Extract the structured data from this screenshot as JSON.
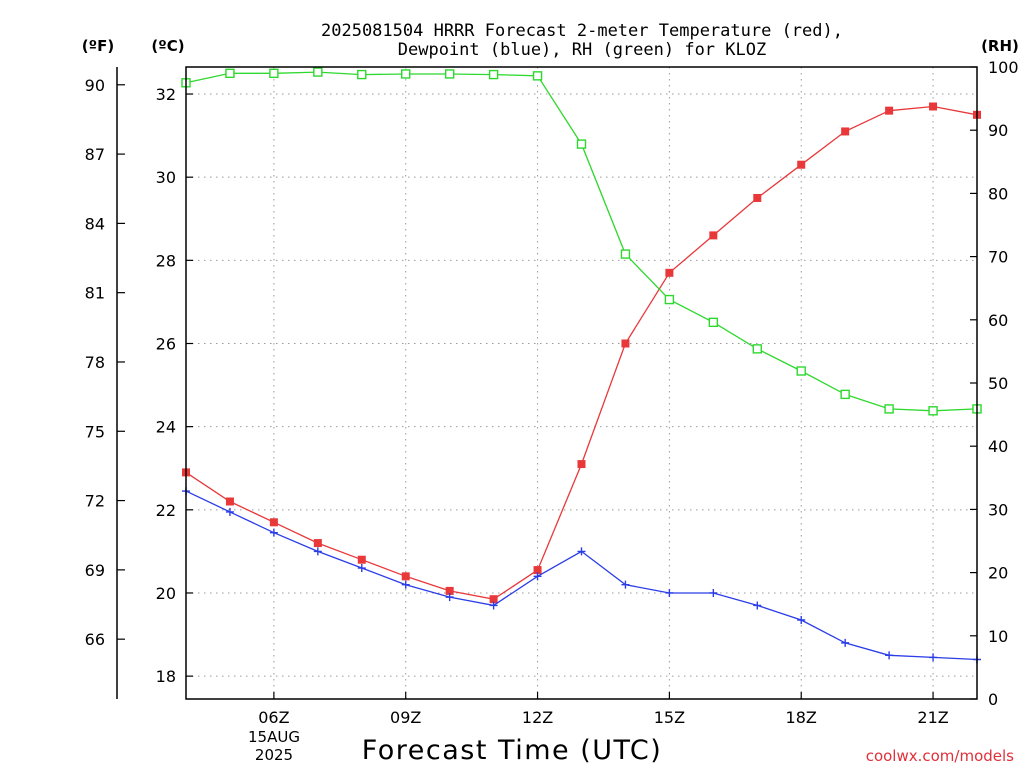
{
  "chart_data": {
    "type": "line",
    "title_lines": [
      "2025081504 HRRR Forecast 2-meter Temperature (red),",
      "Dewpoint (blue), RH (green) for KLOZ"
    ],
    "xlabel": "Forecast Time (UTC)",
    "x_ticks": [
      "06Z",
      "09Z",
      "12Z",
      "15Z",
      "18Z",
      "21Z"
    ],
    "x_tick_hours": [
      6,
      9,
      12,
      15,
      18,
      21
    ],
    "x_date_label": [
      "15AUG",
      "2025"
    ],
    "xlim_hours": [
      4,
      22
    ],
    "left_axis_c": {
      "unit_label": "(ºC)",
      "ticks": [
        18,
        20,
        22,
        24,
        26,
        28,
        30,
        32
      ],
      "ylim": [
        17.45,
        32.65
      ]
    },
    "left_axis_f": {
      "unit_label": "(ºF)",
      "ticks": [
        66,
        69,
        72,
        75,
        78,
        81,
        84,
        87,
        90
      ]
    },
    "right_axis_rh": {
      "unit_label": "(RH)",
      "ticks": [
        0,
        10,
        20,
        30,
        40,
        50,
        60,
        70,
        80,
        90,
        100
      ],
      "ylim": [
        0,
        100
      ]
    },
    "grid": true,
    "series": [
      {
        "name": "Temperature",
        "color": "#e8383a",
        "marker": "filled-square",
        "axis": "celsius",
        "x": [
          4,
          5,
          6,
          7,
          8,
          9,
          10,
          11,
          12,
          13,
          14,
          15,
          16,
          17,
          18,
          19,
          20,
          21,
          22
        ],
        "values": [
          22.9,
          22.2,
          21.7,
          21.2,
          20.8,
          20.4,
          20.05,
          19.85,
          20.55,
          23.1,
          26.0,
          27.7,
          28.6,
          29.5,
          30.3,
          31.1,
          31.6,
          31.7,
          31.5
        ]
      },
      {
        "name": "Dewpoint",
        "color": "#2a3de8",
        "marker": "plus",
        "axis": "celsius",
        "x": [
          4,
          5,
          6,
          7,
          8,
          9,
          10,
          11,
          12,
          13,
          14,
          15,
          16,
          17,
          18,
          19,
          20,
          21,
          22
        ],
        "values": [
          22.45,
          21.95,
          21.45,
          21.0,
          20.6,
          20.2,
          19.9,
          19.7,
          20.4,
          21.0,
          20.2,
          20.0,
          20.0,
          19.7,
          19.35,
          18.8,
          18.5,
          18.45,
          18.4
        ]
      },
      {
        "name": "RH",
        "color": "#2ed82e",
        "marker": "open-square",
        "axis": "rh",
        "x": [
          4,
          5,
          6,
          7,
          8,
          9,
          10,
          11,
          12,
          13,
          14,
          15,
          16,
          17,
          18,
          19,
          20,
          21,
          22
        ],
        "values": [
          97.5,
          99.0,
          99.0,
          99.2,
          98.8,
          98.9,
          98.9,
          98.8,
          98.6,
          87.8,
          70.4,
          63.2,
          59.6,
          55.4,
          51.9,
          48.2,
          45.9,
          45.6,
          45.9
        ]
      }
    ]
  },
  "credit": "coolwx.com/models"
}
